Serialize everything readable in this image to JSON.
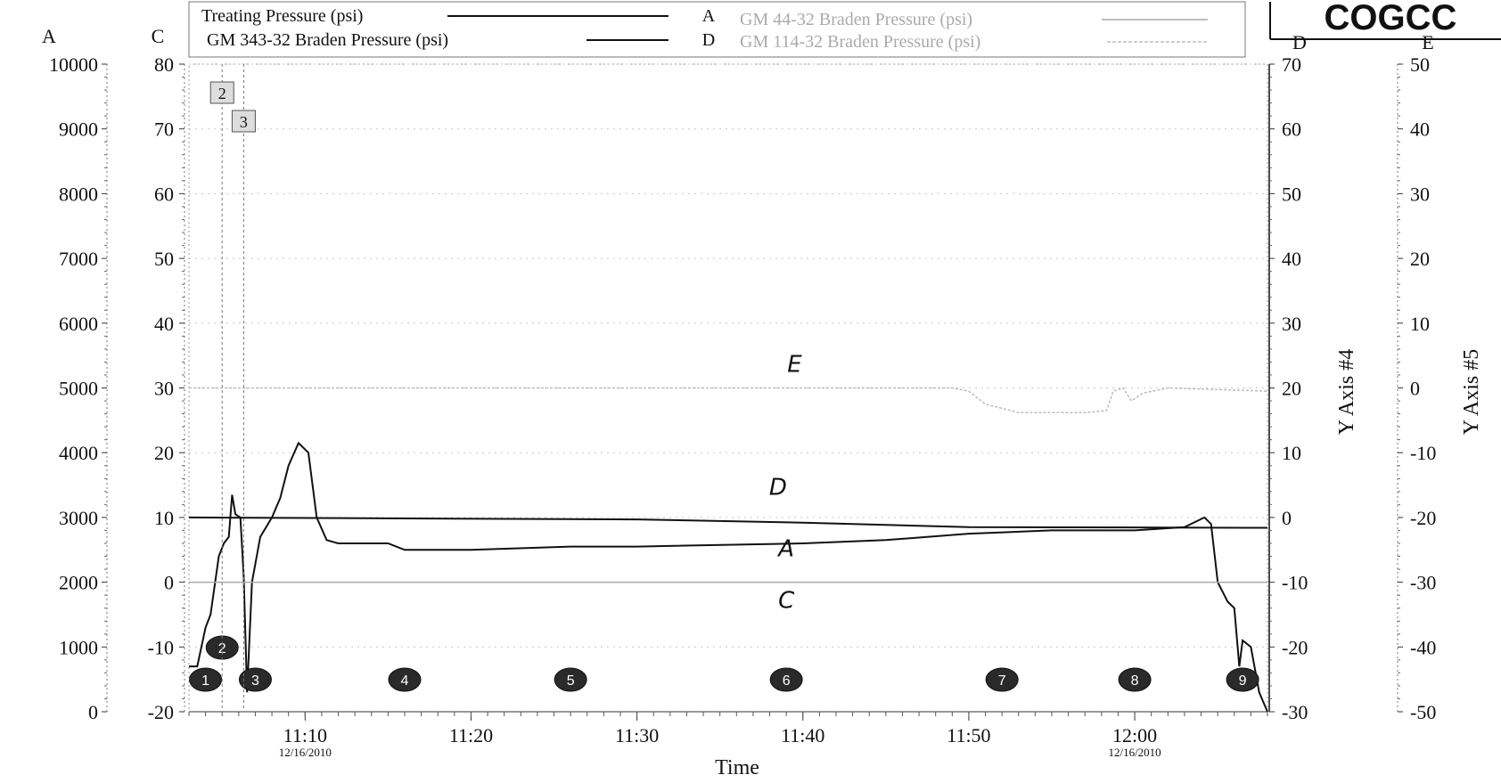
{
  "brand": "COGCC",
  "chart_data": {
    "type": "line",
    "xlabel": "Time",
    "x_range": [
      "11:03",
      "12:08"
    ],
    "x_ticks": [
      {
        "time": "11:10",
        "date": "12/16/2010"
      },
      {
        "time": "11:20",
        "date": ""
      },
      {
        "time": "11:30",
        "date": ""
      },
      {
        "time": "11:40",
        "date": ""
      },
      {
        "time": "11:50",
        "date": ""
      },
      {
        "time": "12:00",
        "date": "12/16/2010"
      }
    ],
    "axes": [
      {
        "id": "A",
        "letter": "A",
        "title": "",
        "range": [
          0,
          10000
        ],
        "ticks": [
          "0",
          "1000",
          "2000",
          "3000",
          "4000",
          "5000",
          "6000",
          "7000",
          "8000",
          "9000",
          "10000"
        ]
      },
      {
        "id": "C",
        "letter": "C",
        "title": "",
        "range": [
          -20,
          80
        ],
        "ticks": [
          "-20",
          "-10",
          "0",
          "10",
          "20",
          "30",
          "40",
          "50",
          "60",
          "70",
          "80"
        ]
      },
      {
        "id": "D",
        "letter": "D",
        "title": "Y Axis #4",
        "range": [
          -30,
          70
        ],
        "ticks": [
          "-30",
          "-20",
          "-10",
          "0",
          "10",
          "20",
          "30",
          "40",
          "50",
          "60",
          "70"
        ]
      },
      {
        "id": "E",
        "letter": "E",
        "title": "Y Axis #5",
        "range": [
          -50,
          50
        ],
        "ticks": [
          "-50",
          "-40",
          "-30",
          "-20",
          "-10",
          "0",
          "10",
          "20",
          "30",
          "40",
          "50"
        ]
      }
    ],
    "legend": [
      {
        "name": "Treating Pressure (psi)",
        "axis": "A",
        "color": "#111111"
      },
      {
        "name": "GM 44-32 Braden Pressure  (psi)",
        "axis": "C",
        "color": "#aaaaaa"
      },
      {
        "name": "GM 343-32 Braden Pressure  (psi)",
        "axis": "D",
        "color": "#111111"
      },
      {
        "name": "GM 114-32 Braden Pressure (psi)",
        "axis": "E",
        "color": "#bbbbbb"
      }
    ],
    "series": [
      {
        "name": "Treating Pressure (psi)",
        "axis": "A",
        "color": "#111111",
        "label": "A",
        "points": [
          [
            "11:03",
            700
          ],
          [
            "11:03.5",
            700
          ],
          [
            "11:04",
            1300
          ],
          [
            "11:04.3",
            1500
          ],
          [
            "11:04.8",
            2400
          ],
          [
            "11:05.1",
            2600
          ],
          [
            "11:05.4",
            2700
          ],
          [
            "11:05.6",
            3350
          ],
          [
            "11:05.8",
            3050
          ],
          [
            "11:06.1",
            3000
          ],
          [
            "11:06.3",
            2100
          ],
          [
            "11:06.5",
            300
          ],
          [
            "11:06.8",
            2000
          ],
          [
            "11:07.3",
            2700
          ],
          [
            "11:08",
            3000
          ],
          [
            "11:08.5",
            3300
          ],
          [
            "11:09",
            3800
          ],
          [
            "11:09.6",
            4150
          ],
          [
            "11:10.2",
            4000
          ],
          [
            "11:10.7",
            3000
          ],
          [
            "11:11.3",
            2650
          ],
          [
            "11:12",
            2600
          ],
          [
            "11:15",
            2600
          ],
          [
            "11:16",
            2500
          ],
          [
            "11:20",
            2500
          ],
          [
            "11:26",
            2550
          ],
          [
            "11:30",
            2550
          ],
          [
            "11:40",
            2600
          ],
          [
            "11:45",
            2650
          ],
          [
            "11:50",
            2750
          ],
          [
            "11:55",
            2800
          ],
          [
            "12:00",
            2800
          ],
          [
            "12:03",
            2850
          ],
          [
            "12:04.2",
            3000
          ],
          [
            "12:04.6",
            2900
          ],
          [
            "12:05",
            2000
          ],
          [
            "12:05.6",
            1700
          ],
          [
            "12:06",
            1600
          ],
          [
            "12:06.3",
            700
          ],
          [
            "12:06.5",
            1100
          ],
          [
            "12:07",
            1000
          ],
          [
            "12:07.5",
            300
          ],
          [
            "12:08",
            0
          ]
        ]
      },
      {
        "name": "GM 44-32 Braden Pressure  (psi)",
        "axis": "C",
        "color": "#aaaaaa",
        "label": "C",
        "points": [
          [
            "11:03",
            0
          ],
          [
            "12:08",
            0
          ]
        ]
      },
      {
        "name": "GM 343-32 Braden Pressure  (psi)",
        "axis": "D",
        "color": "#111111",
        "label": "D",
        "points": [
          [
            "11:03",
            0
          ],
          [
            "11:30",
            -0.3
          ],
          [
            "11:40",
            -0.8
          ],
          [
            "11:50",
            -1.5
          ],
          [
            "12:08",
            -1.6
          ]
        ]
      },
      {
        "name": "GM 114-32 Braden Pressure (psi)",
        "axis": "E",
        "color": "#bbbbbb",
        "label": "E",
        "points": [
          [
            "11:03",
            0
          ],
          [
            "11:49",
            0
          ],
          [
            "11:50",
            -0.5
          ],
          [
            "11:51",
            -2.5
          ],
          [
            "11:53",
            -3.8
          ],
          [
            "11:57",
            -3.8
          ],
          [
            "11:58.3",
            -3.5
          ],
          [
            "11:58.7",
            -0.5
          ],
          [
            "11:59.3",
            0
          ],
          [
            "11:59.8",
            -2
          ],
          [
            "12:00.5",
            -0.8
          ],
          [
            "12:02",
            0
          ],
          [
            "12:08",
            -0.5
          ]
        ]
      }
    ],
    "annotations": [
      {
        "label": "1",
        "time": "11:04",
        "style": "marker"
      },
      {
        "label": "2",
        "time": "11:05",
        "style": "marker-high"
      },
      {
        "label": "3",
        "time": "11:07",
        "style": "marker"
      },
      {
        "label": "4",
        "time": "11:16",
        "style": "marker"
      },
      {
        "label": "5",
        "time": "11:26",
        "style": "marker"
      },
      {
        "label": "6",
        "time": "11:39",
        "style": "marker"
      },
      {
        "label": "7",
        "time": "11:52",
        "style": "marker"
      },
      {
        "label": "8",
        "time": "12:00",
        "style": "marker"
      },
      {
        "label": "9",
        "time": "12:06.5",
        "style": "marker"
      },
      {
        "label": "2",
        "time": "11:05",
        "style": "box"
      },
      {
        "label": "3",
        "time": "11:06.3",
        "style": "box"
      }
    ]
  }
}
